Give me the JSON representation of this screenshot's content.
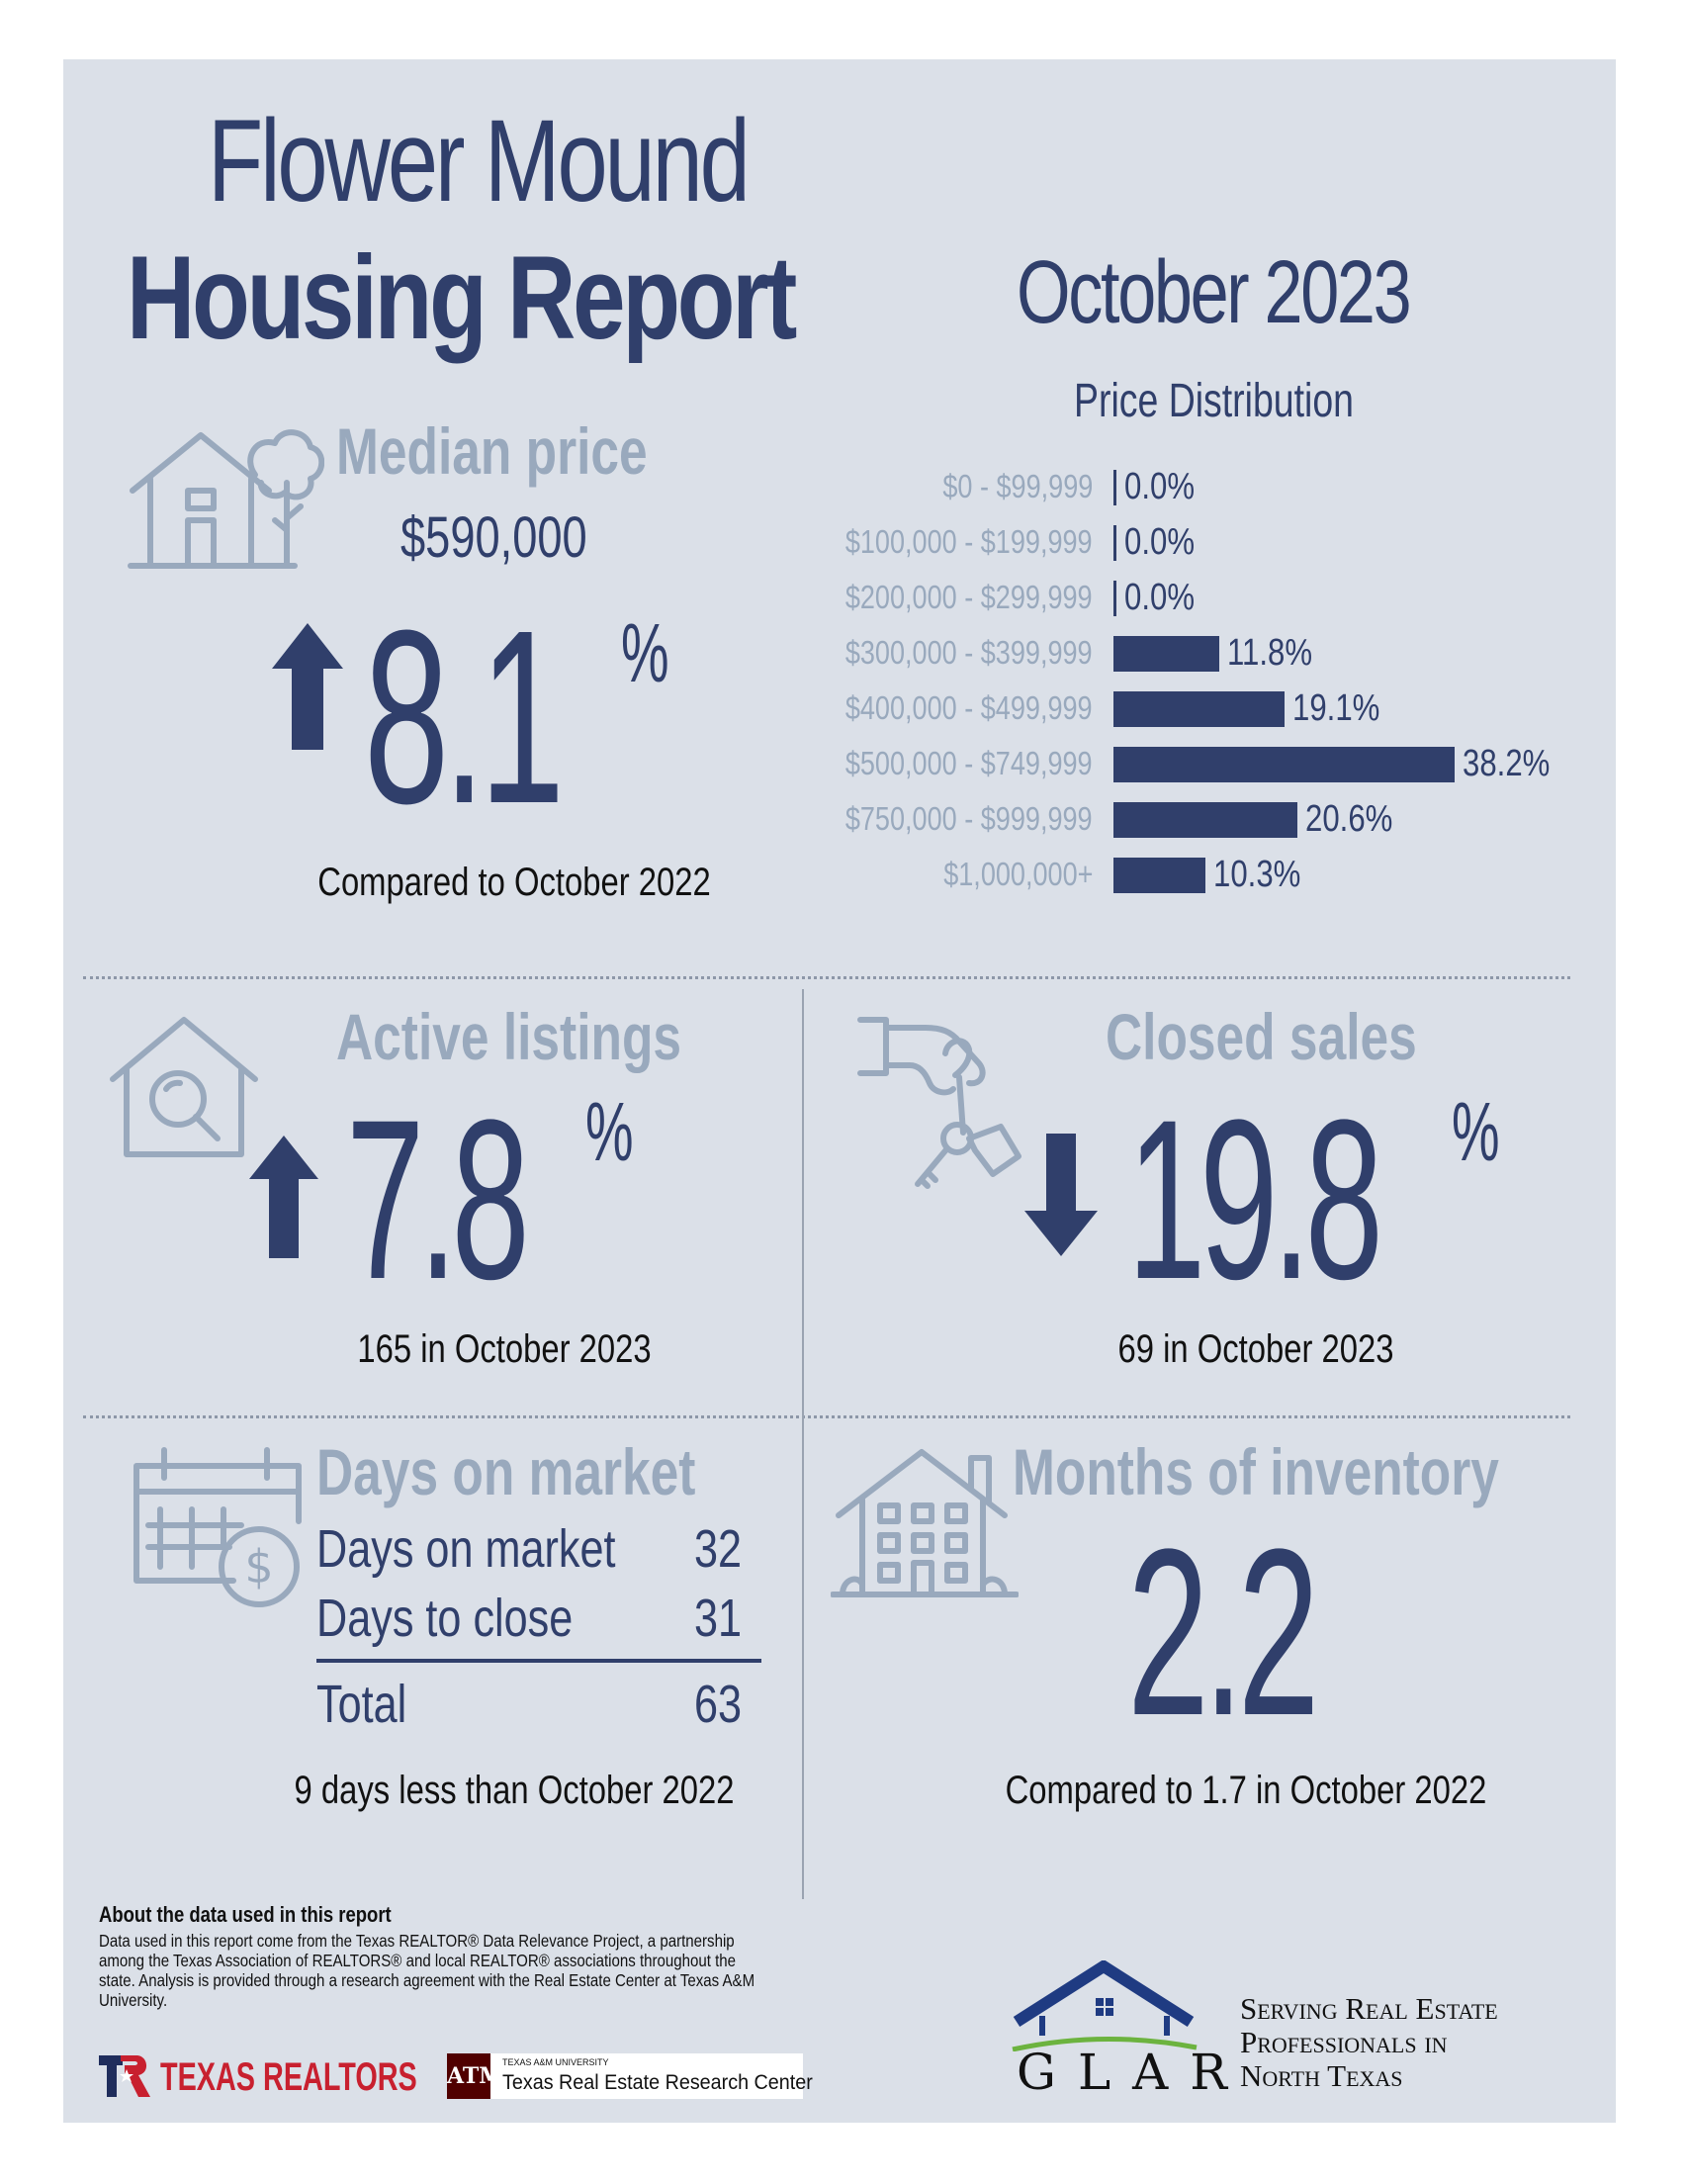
{
  "header": {
    "title_line1": "Flower Mound",
    "title_line2": "Housing Report",
    "month": "October 2023"
  },
  "median_price": {
    "heading": "Median price",
    "price": "$590,000",
    "change_direction": "up",
    "change_value": "8.1",
    "percent_sign": "%",
    "caption": "Compared to October 2022"
  },
  "price_distribution": {
    "heading": "Price Distribution",
    "chart_data": {
      "type": "bar",
      "title": "Price Distribution",
      "categories": [
        "$0 - $99,999",
        "$100,000 - $199,999",
        "$200,000 - $299,999",
        "$300,000 - $399,999",
        "$400,000 - $499,999",
        "$500,000 - $749,999",
        "$750,000 - $999,999",
        "$1,000,000+"
      ],
      "values": [
        0.0,
        0.0,
        0.0,
        11.8,
        19.1,
        38.2,
        20.6,
        10.3
      ],
      "value_labels": [
        "0.0%",
        "0.0%",
        "0.0%",
        "11.8%",
        "19.1%",
        "38.2%",
        "20.6%",
        "10.3%"
      ],
      "orientation": "horizontal",
      "unit": "%",
      "xlim": [
        0,
        38.2
      ],
      "bar_color": "#303f6b"
    }
  },
  "active_listings": {
    "heading": "Active listings",
    "change_direction": "up",
    "change_value": "7.8",
    "percent_sign": "%",
    "caption": "165 in October 2023"
  },
  "closed_sales": {
    "heading": "Closed sales",
    "change_direction": "down",
    "change_value": "19.8",
    "percent_sign": "%",
    "caption": "69 in October 2023"
  },
  "days_on_market": {
    "heading": "Days on market",
    "rows": [
      {
        "label": "Days on market",
        "value": "32"
      },
      {
        "label": "Days to close",
        "value": "31"
      }
    ],
    "total_label": "Total",
    "total_value": "63",
    "caption": "9 days less than October 2022"
  },
  "months_inventory": {
    "heading": "Months of inventory",
    "value": "2.2",
    "caption": "Compared to 1.7 in October 2022"
  },
  "about": {
    "heading": "About the data used in this report",
    "body": "Data used in this report come from the Texas REALTOR® Data Relevance Project, a partnership among the Texas Association of REALTORS® and local REALTOR® associations throughout the state. Analysis is provided through a research agreement with the Real Estate Center at Texas A&M University."
  },
  "logos": {
    "texas_realtors": "TEXAS REALTORS",
    "tamu_small": "TEXAS A&M UNIVERSITY",
    "tamu_center": "Texas Real Estate Research Center",
    "glar": "GLAR",
    "glar_tagline_1": "Serving Real Estate",
    "glar_tagline_2": "Professionals in",
    "glar_tagline_3": "North Texas"
  },
  "colors": {
    "navy": "#303f6b",
    "steel": "#99a9bd",
    "panel": "#dbe0e8",
    "texas_red": "#c8202f",
    "tamu_maroon": "#500000"
  }
}
